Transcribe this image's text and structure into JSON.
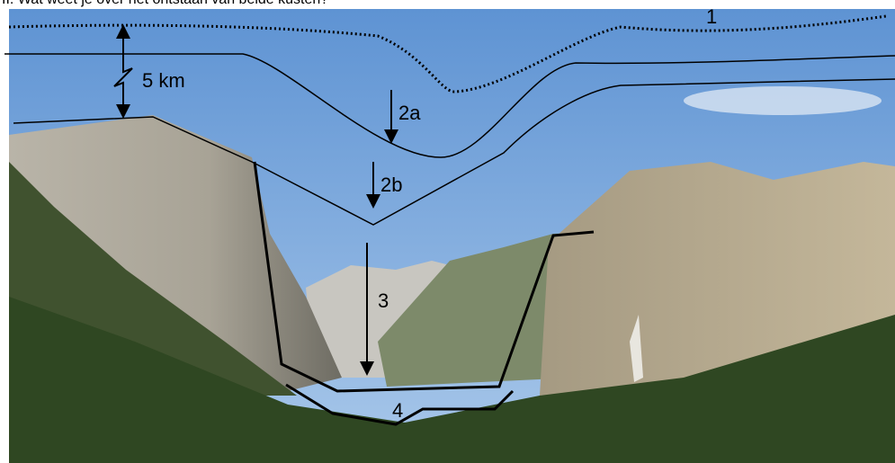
{
  "header": {
    "question": "II. Wat weet je over het ontstaan van beide kusten?"
  },
  "labels": {
    "level_1": "1",
    "distance": "5 km",
    "level_2a": "2a",
    "level_2b": "2b",
    "level_3": "3",
    "level_4": "4"
  }
}
